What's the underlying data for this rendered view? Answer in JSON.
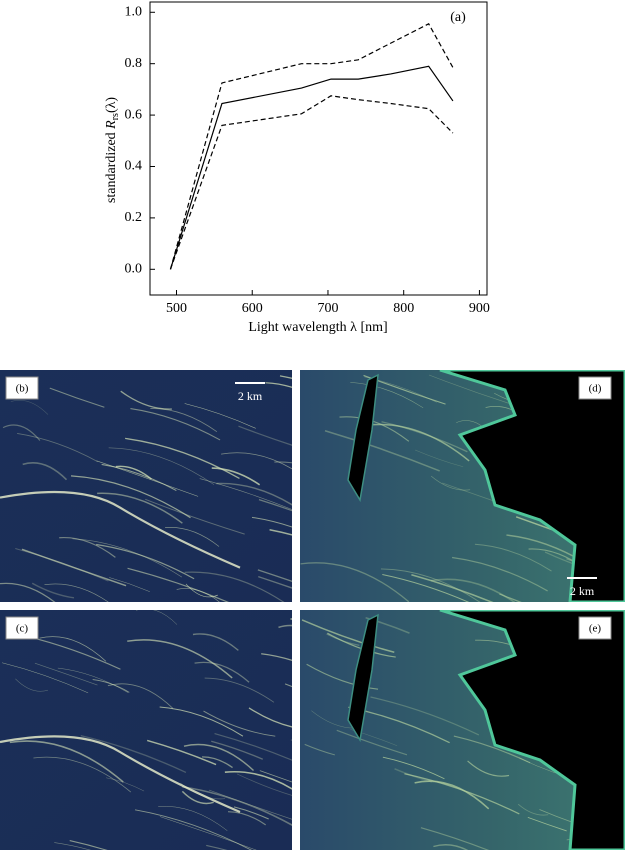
{
  "chart_data": {
    "type": "line",
    "annotation": "(a)",
    "xlabel": "Light wavelength  λ [nm]",
    "ylabel": [
      "standardized ",
      "R",
      "rs",
      "(λ)"
    ],
    "x": [
      492,
      560,
      665,
      704,
      740,
      783,
      833,
      865
    ],
    "series": [
      {
        "color": "#000",
        "dash": "solid",
        "values": [
          0,
          0.645,
          0.705,
          0.74,
          0.74,
          0.76,
          0.79,
          0.655
        ]
      },
      {
        "color": "#000",
        "dash": "dashed",
        "values": [
          0,
          0.725,
          0.8,
          0.8,
          0.815,
          0.88,
          0.955,
          0.785
        ]
      },
      {
        "color": "#000",
        "dash": "dashed",
        "values": [
          0,
          0.56,
          0.605,
          0.675,
          0.66,
          0.645,
          0.625,
          0.53
        ]
      }
    ],
    "xlim": [
      465,
      910
    ],
    "xticks": [
      500,
      600,
      700,
      800,
      900
    ],
    "ylim": [
      -0.1,
      1.04
    ],
    "yticks": [
      {
        "value": 0,
        "label": "0.0"
      },
      0.2,
      0.4,
      0.6,
      0.8,
      {
        "value": 1,
        "label": "1.0"
      }
    ]
  },
  "images": [
    {
      "label": "(b)",
      "scale_bar": "2 km"
    },
    {
      "label": "(d)",
      "scale_bar": "2 km"
    },
    {
      "label": "(c)"
    },
    {
      "label": "(e)"
    }
  ]
}
